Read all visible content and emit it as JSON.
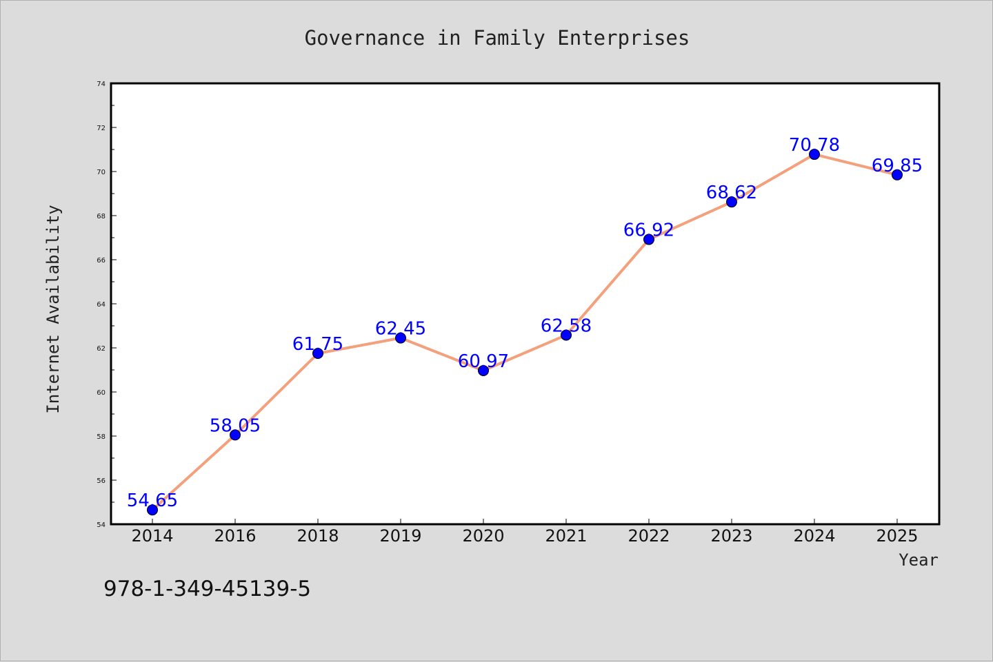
{
  "chart_data": {
    "type": "line",
    "title": "Governance in Family Enterprises",
    "xlabel": "Year",
    "ylabel": "Internet Availability",
    "categories": [
      "2014",
      "2016",
      "2018",
      "2019",
      "2020",
      "2021",
      "2022",
      "2023",
      "2024",
      "2025"
    ],
    "series": [
      {
        "values": [
          54.65,
          58.05,
          61.75,
          62.45,
          60.97,
          62.58,
          66.92,
          68.62,
          70.78,
          69.85
        ],
        "data_labels": [
          "54.65",
          "58.05",
          "61.75",
          "62.45",
          "60.97",
          "62.58",
          "66.92",
          "68.62",
          "70.78",
          "69.85"
        ],
        "line_color": "#f4a07c",
        "marker_color": "#0000ff"
      }
    ],
    "ylim": [
      54,
      74
    ],
    "y_ticks": [
      "54",
      "56",
      "58",
      "60",
      "62",
      "64",
      "66",
      "68",
      "70",
      "72",
      "74"
    ],
    "grid": false,
    "legend": "none"
  },
  "footer_code": "978-1-349-45139-5",
  "colors": {
    "background": "#dcdcdc",
    "plot_background": "#ffffff",
    "line": "#f4a07c",
    "marker": "#0000ff",
    "data_label": "#0000ff"
  }
}
